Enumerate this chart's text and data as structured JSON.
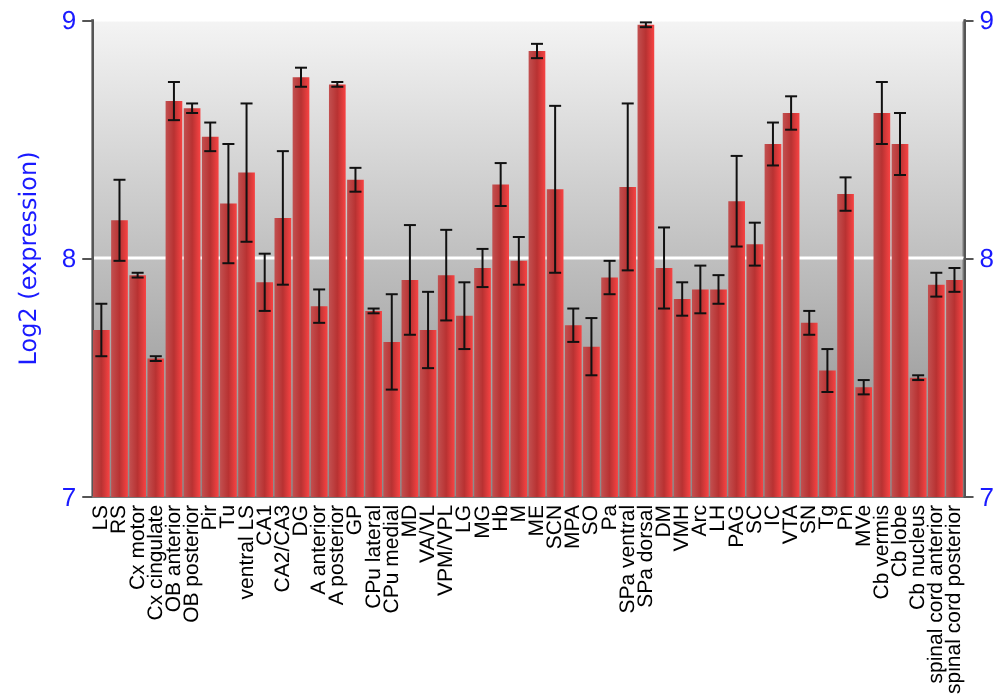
{
  "chart_data": {
    "type": "bar",
    "ylabel": "Log2 (expression)",
    "categories": [
      "LS",
      "RS",
      "Cx motor",
      "Cx cingulate",
      "OB anterior",
      "OB posterior",
      "Pir",
      "Tu",
      "ventral LS",
      "CA1",
      "CA2/CA3",
      "DG",
      "A anterior",
      "A posterior",
      "GP",
      "CPu lateral",
      "CPu medial",
      "MD",
      "VA/VL",
      "VPM/VPL",
      "LG",
      "MG",
      "Hb",
      "M",
      "ME",
      "SCN",
      "MPA",
      "SO",
      "Pa",
      "SPa ventral",
      "SPa dorsal",
      "DM",
      "VMH",
      "Arc",
      "LH",
      "PAG",
      "SC",
      "IC",
      "VTA",
      "SN",
      "Tg",
      "Pn",
      "MVe",
      "Cb vermis",
      "Cb lobe",
      "Cb nucleus",
      "spinal cord anterior",
      "spinal cord posterior"
    ],
    "values": [
      7.7,
      8.16,
      7.93,
      7.58,
      8.66,
      8.63,
      8.51,
      8.23,
      8.36,
      7.9,
      8.17,
      8.76,
      7.8,
      8.73,
      8.33,
      7.78,
      7.65,
      7.91,
      7.7,
      7.93,
      7.76,
      7.96,
      8.31,
      7.99,
      8.87,
      8.29,
      7.72,
      7.63,
      7.92,
      8.3,
      8.98,
      7.96,
      7.83,
      7.87,
      7.87,
      8.24,
      8.06,
      8.48,
      8.61,
      7.73,
      7.53,
      8.27,
      7.46,
      8.61,
      8.48,
      7.5,
      7.89,
      7.91
    ],
    "errors": [
      0.11,
      0.17,
      0.01,
      0.01,
      0.08,
      0.02,
      0.06,
      0.25,
      0.29,
      0.12,
      0.28,
      0.04,
      0.07,
      0.01,
      0.05,
      0.01,
      0.2,
      0.23,
      0.16,
      0.19,
      0.14,
      0.08,
      0.09,
      0.1,
      0.03,
      0.35,
      0.07,
      0.12,
      0.07,
      0.35,
      0.01,
      0.17,
      0.07,
      0.1,
      0.06,
      0.19,
      0.09,
      0.09,
      0.07,
      0.05,
      0.09,
      0.07,
      0.03,
      0.13,
      0.13,
      0.01,
      0.05,
      0.05
    ],
    "color": "#b83232",
    "ylim": [
      7,
      9
    ],
    "yticks": [
      7,
      8,
      9
    ],
    "y2lim": [
      7,
      9
    ],
    "y2ticks": [
      7,
      8,
      9
    ],
    "grid": "y"
  }
}
